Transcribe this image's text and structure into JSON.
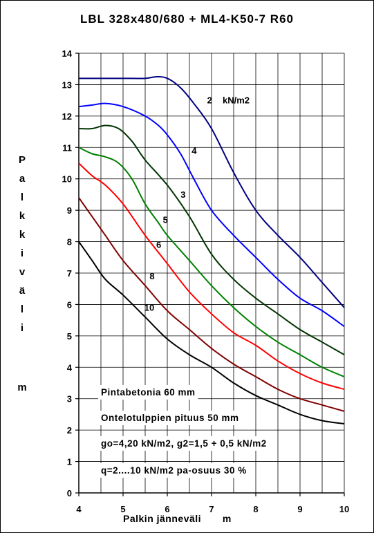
{
  "chart_data": {
    "type": "line",
    "title": "LBL 328x480/680 + ML4-K50-7 R60",
    "xlabel": "Palkin jänneväli",
    "xunit": "m",
    "ylabel": "Palkkiväli",
    "yunit": "m",
    "xlim": [
      4,
      10
    ],
    "ylim": [
      0,
      14
    ],
    "xticks": [
      4,
      5,
      6,
      7,
      8,
      9,
      10
    ],
    "yticks": [
      0,
      1,
      2,
      3,
      4,
      5,
      6,
      7,
      8,
      9,
      10,
      11,
      12,
      13,
      14
    ],
    "grid": true,
    "series": [
      {
        "name": "2 kN/m2",
        "color": "#000080",
        "points": [
          [
            4.0,
            13.2
          ],
          [
            4.5,
            13.2
          ],
          [
            5.0,
            13.2
          ],
          [
            5.5,
            13.2
          ],
          [
            5.75,
            13.25
          ],
          [
            6.0,
            13.2
          ],
          [
            6.3,
            12.9
          ],
          [
            6.6,
            12.4
          ],
          [
            7.0,
            11.6
          ],
          [
            7.5,
            10.2
          ],
          [
            8.0,
            9.0
          ],
          [
            8.5,
            8.2
          ],
          [
            9.0,
            7.5
          ],
          [
            9.5,
            6.7
          ],
          [
            10.0,
            5.9
          ]
        ]
      },
      {
        "name": "4",
        "color": "#0000FF",
        "points": [
          [
            4.0,
            12.3
          ],
          [
            4.3,
            12.35
          ],
          [
            4.6,
            12.4
          ],
          [
            5.0,
            12.3
          ],
          [
            5.5,
            12.0
          ],
          [
            5.8,
            11.7
          ],
          [
            6.0,
            11.4
          ],
          [
            6.3,
            10.8
          ],
          [
            6.6,
            10.0
          ],
          [
            7.0,
            9.0
          ],
          [
            7.5,
            8.2
          ],
          [
            8.0,
            7.5
          ],
          [
            8.5,
            6.8
          ],
          [
            9.0,
            6.2
          ],
          [
            9.5,
            5.8
          ],
          [
            10.0,
            5.3
          ]
        ]
      },
      {
        "name": "3",
        "color": "#003300",
        "points": [
          [
            4.0,
            11.6
          ],
          [
            4.3,
            11.6
          ],
          [
            4.6,
            11.7
          ],
          [
            4.9,
            11.6
          ],
          [
            5.2,
            11.2
          ],
          [
            5.5,
            10.6
          ],
          [
            6.0,
            9.8
          ],
          [
            6.5,
            8.8
          ],
          [
            7.0,
            7.6
          ],
          [
            7.5,
            6.8
          ],
          [
            8.0,
            6.2
          ],
          [
            8.5,
            5.7
          ],
          [
            9.0,
            5.2
          ],
          [
            9.5,
            4.8
          ],
          [
            10.0,
            4.4
          ]
        ]
      },
      {
        "name": "5",
        "color": "#008000",
        "points": [
          [
            4.0,
            11.0
          ],
          [
            4.3,
            10.8
          ],
          [
            4.6,
            10.7
          ],
          [
            4.9,
            10.5
          ],
          [
            5.2,
            10.0
          ],
          [
            5.5,
            9.2
          ],
          [
            5.8,
            8.6
          ],
          [
            6.0,
            8.2
          ],
          [
            6.5,
            7.4
          ],
          [
            7.0,
            6.6
          ],
          [
            7.5,
            5.9
          ],
          [
            8.0,
            5.3
          ],
          [
            8.5,
            4.8
          ],
          [
            9.0,
            4.4
          ],
          [
            9.5,
            4.0
          ],
          [
            10.0,
            3.7
          ]
        ]
      },
      {
        "name": "6",
        "color": "#FF0000",
        "points": [
          [
            4.0,
            10.5
          ],
          [
            4.3,
            10.1
          ],
          [
            4.6,
            9.8
          ],
          [
            5.0,
            9.2
          ],
          [
            5.5,
            8.2
          ],
          [
            6.0,
            7.3
          ],
          [
            6.5,
            6.4
          ],
          [
            7.0,
            5.7
          ],
          [
            7.5,
            5.1
          ],
          [
            8.0,
            4.7
          ],
          [
            8.5,
            4.2
          ],
          [
            9.0,
            3.8
          ],
          [
            9.5,
            3.5
          ],
          [
            10.0,
            3.3
          ]
        ]
      },
      {
        "name": "8",
        "color": "#800000",
        "points": [
          [
            4.0,
            9.4
          ],
          [
            4.3,
            8.8
          ],
          [
            4.6,
            8.2
          ],
          [
            5.0,
            7.4
          ],
          [
            5.5,
            6.6
          ],
          [
            6.0,
            5.8
          ],
          [
            6.5,
            5.2
          ],
          [
            7.0,
            4.6
          ],
          [
            7.5,
            4.1
          ],
          [
            8.0,
            3.7
          ],
          [
            8.5,
            3.3
          ],
          [
            9.0,
            3.0
          ],
          [
            9.5,
            2.8
          ],
          [
            10.0,
            2.6
          ]
        ]
      },
      {
        "name": "10",
        "color": "#000000",
        "points": [
          [
            4.0,
            8.0
          ],
          [
            4.3,
            7.4
          ],
          [
            4.6,
            6.8
          ],
          [
            5.0,
            6.3
          ],
          [
            5.5,
            5.6
          ],
          [
            6.0,
            4.9
          ],
          [
            6.5,
            4.4
          ],
          [
            7.0,
            4.0
          ],
          [
            7.5,
            3.5
          ],
          [
            8.0,
            3.1
          ],
          [
            8.5,
            2.8
          ],
          [
            9.0,
            2.5
          ],
          [
            9.5,
            2.3
          ],
          [
            10.0,
            2.2
          ]
        ]
      }
    ],
    "curve_labels": [
      {
        "text": "2",
        "x": 6.9,
        "y": 12.4
      },
      {
        "text": "kN/m2",
        "x": 7.25,
        "y": 12.4
      },
      {
        "text": "4",
        "x": 6.55,
        "y": 10.8
      },
      {
        "text": "3",
        "x": 6.3,
        "y": 9.4
      },
      {
        "text": "5",
        "x": 5.9,
        "y": 8.6
      },
      {
        "text": "6",
        "x": 5.75,
        "y": 7.8
      },
      {
        "text": "8",
        "x": 5.6,
        "y": 6.8
      },
      {
        "text": "10",
        "x": 5.48,
        "y": 5.8
      }
    ],
    "annotations": [
      "Pintabetonia 60 mm",
      "Ontelotulppien pituus 50 mm",
      "go=4,20 kN/m2, g2=1,5 + 0,5 kN/m2",
      "q=2....10 kN/m2 pa-osuus 30 %"
    ]
  }
}
